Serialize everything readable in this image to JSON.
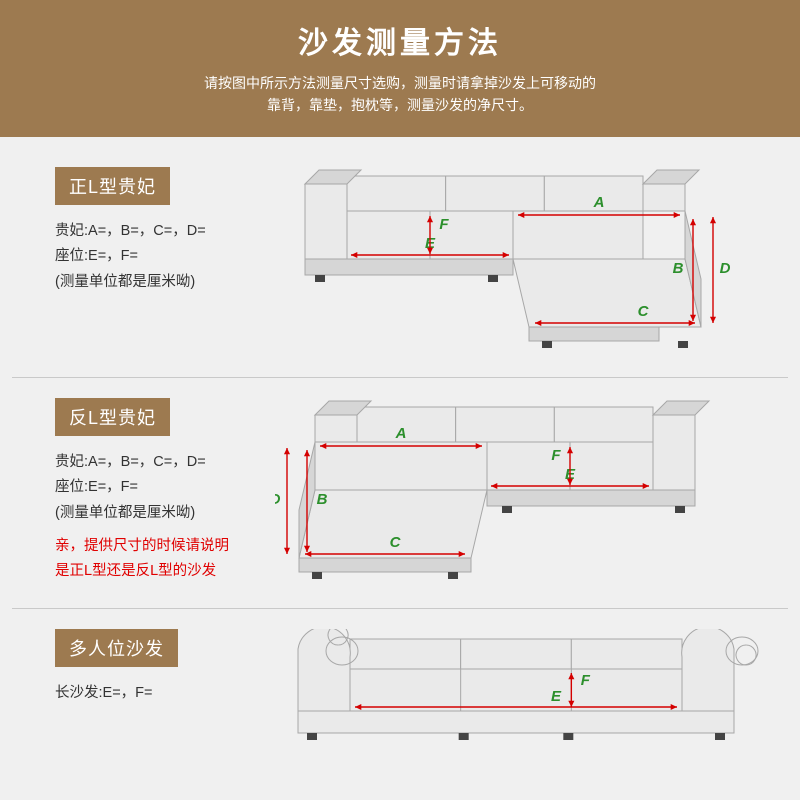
{
  "header": {
    "title": "沙发测量方法",
    "sub1": "请按图中所示方法测量尺寸选购，测量时请拿掉沙发上可移动的",
    "sub2": "靠背，靠垫，抱枕等，测量沙发的净尺寸。"
  },
  "sections": {
    "s1": {
      "badge": "正L型贵妃",
      "line1": "贵妃:A=，B=，C=，D=",
      "line2": "座位:E=，F=",
      "line3": "(测量单位都是厘米呦)"
    },
    "s2": {
      "badge": "反L型贵妃",
      "line1": "贵妃:A=，B=，C=，D=",
      "line2": "座位:E=，F=",
      "line3": "(测量单位都是厘米呦)",
      "red1": "亲，提供尺寸的时候请说明",
      "red2": "是正L型还是反L型的沙发"
    },
    "s3": {
      "badge": "多人位沙发",
      "line1": "长沙发:E=，F="
    }
  },
  "labels": {
    "A": "A",
    "B": "B",
    "C": "C",
    "D": "D",
    "E": "E",
    "F": "F"
  },
  "colors": {
    "brand": "#9d7a50",
    "bg": "#f0f0f0",
    "sofa_fill": "#eaeaea",
    "sofa_dark": "#d6d6d6",
    "sofa_stroke": "#a7a7a7",
    "arrow": "#d40000",
    "label_green": "#2c8f2c",
    "foot": "#444444"
  },
  "diagram": {
    "arrow_width": 1.4,
    "label_fontsize": 15,
    "label_fontweight": "bold"
  }
}
